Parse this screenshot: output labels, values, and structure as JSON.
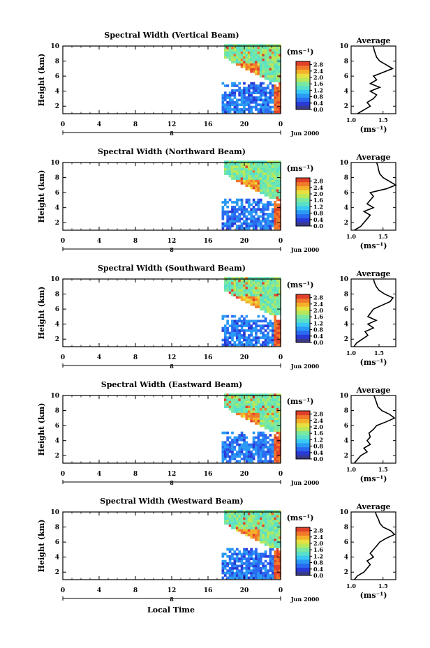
{
  "figure": {
    "xlabel": "Local Time",
    "avg_title": "Average",
    "unit_label": "(ms⁻¹)",
    "date_label": "Jun 2000",
    "day_label": "8",
    "x_ticks": [
      "0",
      "4",
      "8",
      "12",
      "16",
      "20",
      "0"
    ],
    "y_ticks": [
      "2",
      "4",
      "6",
      "8",
      "10"
    ],
    "cbar_ticks": [
      "0.0",
      "0.4",
      "0.8",
      "1.2",
      "1.6",
      "2.0",
      "2.4",
      "2.8"
    ],
    "ylabel": "Height (km)",
    "colors": {
      "scale": [
        "#3a3a8a",
        "#2a3ad8",
        "#2a6af0",
        "#2a9af5",
        "#3ac8f5",
        "#5ae0c8",
        "#7ae8a0",
        "#b8e85a",
        "#e8e040",
        "#f5b02a",
        "#f07a2a",
        "#e0402a"
      ]
    }
  },
  "chart_data": [
    {
      "type": "heatmap",
      "title": "Spectral Width (Vertical Beam)",
      "xlabel": "Local Time",
      "ylabel": "Height (km)",
      "xlim": [
        0,
        24
      ],
      "ylim": [
        1,
        10
      ],
      "clim": [
        0,
        3.0
      ],
      "avg": {
        "title": "Average",
        "xlim": [
          1.0,
          1.7
        ],
        "xticks": [
          "1.0",
          "1.5"
        ],
        "profile": [
          [
            1.1,
            1.0
          ],
          [
            1.2,
            1.5
          ],
          [
            1.3,
            2.0
          ],
          [
            1.25,
            2.5
          ],
          [
            1.35,
            3.0
          ],
          [
            1.4,
            3.5
          ],
          [
            1.3,
            4.0
          ],
          [
            1.45,
            4.5
          ],
          [
            1.3,
            5.0
          ],
          [
            1.4,
            5.5
          ],
          [
            1.35,
            6.0
          ],
          [
            1.5,
            6.5
          ],
          [
            1.65,
            7.0
          ],
          [
            1.55,
            7.5
          ],
          [
            1.45,
            8.0
          ],
          [
            1.4,
            8.5
          ],
          [
            1.38,
            9.0
          ],
          [
            1.36,
            9.5
          ],
          [
            1.35,
            10.0
          ]
        ]
      }
    },
    {
      "type": "heatmap",
      "title": "Spectral Width (Northward Beam)",
      "xlabel": "Local Time",
      "ylabel": "Height (km)",
      "xlim": [
        0,
        24
      ],
      "ylim": [
        1,
        10
      ],
      "clim": [
        0,
        3.0
      ],
      "avg": {
        "title": "Average",
        "xlim": [
          1.0,
          1.7
        ],
        "xticks": [
          "1.0",
          "1.5"
        ],
        "profile": [
          [
            1.05,
            1.0
          ],
          [
            1.15,
            1.5
          ],
          [
            1.2,
            2.0
          ],
          [
            1.25,
            2.5
          ],
          [
            1.3,
            3.0
          ],
          [
            1.2,
            3.5
          ],
          [
            1.35,
            4.0
          ],
          [
            1.25,
            4.5
          ],
          [
            1.3,
            5.0
          ],
          [
            1.35,
            5.5
          ],
          [
            1.3,
            6.0
          ],
          [
            1.55,
            6.5
          ],
          [
            1.7,
            7.0
          ],
          [
            1.6,
            7.5
          ],
          [
            1.5,
            8.0
          ],
          [
            1.45,
            8.5
          ],
          [
            1.43,
            9.0
          ],
          [
            1.42,
            9.5
          ],
          [
            1.4,
            10.0
          ]
        ]
      }
    },
    {
      "type": "heatmap",
      "title": "Spectral Width (Southward Beam)",
      "xlabel": "Local Time",
      "ylabel": "Height (km)",
      "xlim": [
        0,
        24
      ],
      "ylim": [
        1,
        10
      ],
      "clim": [
        0,
        3.0
      ],
      "avg": {
        "title": "Average",
        "xlim": [
          1.0,
          1.8
        ],
        "xticks": [
          "1.0",
          "1.5"
        ],
        "profile": [
          [
            1.05,
            1.0
          ],
          [
            1.1,
            1.5
          ],
          [
            1.2,
            2.0
          ],
          [
            1.3,
            2.5
          ],
          [
            1.25,
            3.0
          ],
          [
            1.4,
            3.5
          ],
          [
            1.3,
            4.0
          ],
          [
            1.45,
            4.5
          ],
          [
            1.3,
            5.0
          ],
          [
            1.35,
            5.5
          ],
          [
            1.4,
            6.0
          ],
          [
            1.55,
            6.5
          ],
          [
            1.7,
            7.0
          ],
          [
            1.75,
            7.5
          ],
          [
            1.6,
            8.0
          ],
          [
            1.5,
            8.5
          ],
          [
            1.45,
            9.0
          ],
          [
            1.42,
            9.5
          ],
          [
            1.4,
            10.0
          ]
        ]
      }
    },
    {
      "type": "heatmap",
      "title": "Spectral Width (Eastward Beam)",
      "xlabel": "Local Time",
      "ylabel": "Height (km)",
      "xlim": [
        0,
        24
      ],
      "ylim": [
        1,
        10
      ],
      "clim": [
        0,
        3.0
      ],
      "avg": {
        "title": "Average",
        "xlim": [
          1.0,
          1.7
        ],
        "xticks": [
          "1.0",
          "1.5"
        ],
        "profile": [
          [
            1.05,
            1.0
          ],
          [
            1.1,
            1.5
          ],
          [
            1.15,
            2.0
          ],
          [
            1.25,
            2.5
          ],
          [
            1.2,
            3.0
          ],
          [
            1.3,
            3.5
          ],
          [
            1.25,
            4.0
          ],
          [
            1.3,
            4.5
          ],
          [
            1.28,
            5.0
          ],
          [
            1.35,
            5.5
          ],
          [
            1.4,
            6.0
          ],
          [
            1.55,
            6.5
          ],
          [
            1.68,
            7.0
          ],
          [
            1.6,
            7.5
          ],
          [
            1.48,
            8.0
          ],
          [
            1.42,
            8.5
          ],
          [
            1.4,
            9.0
          ],
          [
            1.38,
            9.5
          ],
          [
            1.36,
            10.0
          ]
        ]
      }
    },
    {
      "type": "heatmap",
      "title": "Spectral Width (Westward Beam)",
      "xlabel": "Local Time",
      "ylabel": "Height (km)",
      "xlim": [
        0,
        24
      ],
      "ylim": [
        1,
        10
      ],
      "clim": [
        0,
        3.0
      ],
      "avg": {
        "title": "Average",
        "xlim": [
          1.0,
          1.7
        ],
        "xticks": [
          "1.0",
          "1.5"
        ],
        "profile": [
          [
            1.05,
            1.0
          ],
          [
            1.1,
            1.5
          ],
          [
            1.2,
            2.0
          ],
          [
            1.25,
            2.5
          ],
          [
            1.3,
            3.0
          ],
          [
            1.25,
            3.5
          ],
          [
            1.35,
            4.0
          ],
          [
            1.3,
            4.5
          ],
          [
            1.35,
            5.0
          ],
          [
            1.4,
            5.5
          ],
          [
            1.45,
            6.0
          ],
          [
            1.55,
            6.5
          ],
          [
            1.68,
            7.0
          ],
          [
            1.62,
            7.5
          ],
          [
            1.5,
            8.0
          ],
          [
            1.45,
            8.5
          ],
          [
            1.43,
            9.0
          ],
          [
            1.4,
            9.5
          ],
          [
            1.38,
            10.0
          ]
        ]
      }
    }
  ]
}
